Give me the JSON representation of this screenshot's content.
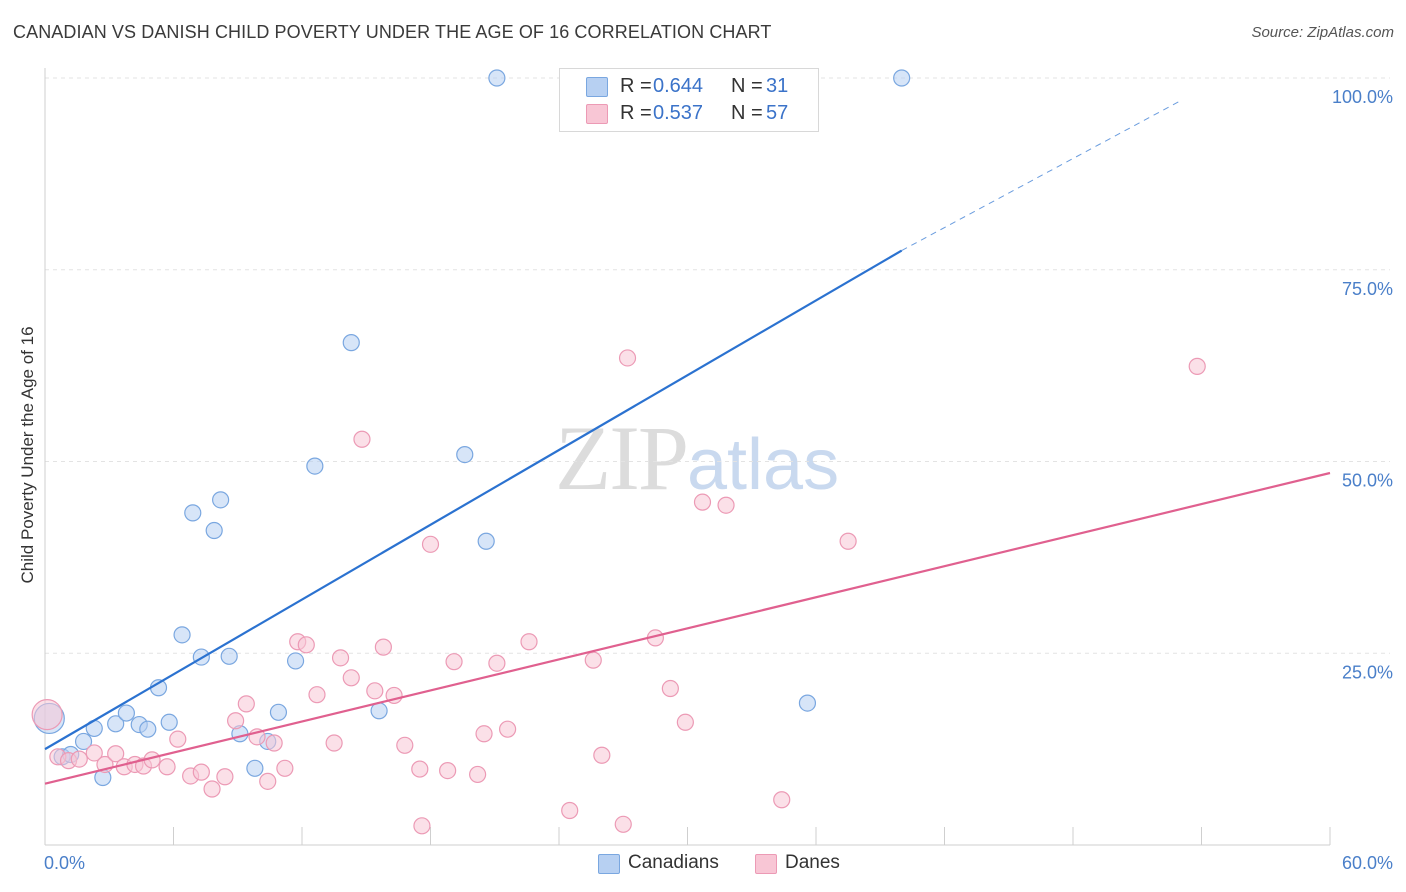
{
  "title": "CANADIAN VS DANISH CHILD POVERTY UNDER THE AGE OF 16 CORRELATION CHART",
  "source": "Source: ZipAtlas.com",
  "watermark": {
    "zip": "ZIP",
    "atlas": "atlas"
  },
  "colors": {
    "canadians_fill": "#b7d0f2",
    "canadians_stroke": "#7aa7e0",
    "canadians_line": "#2b72d0",
    "danes_fill": "#f8c6d5",
    "danes_stroke": "#ec9ab5",
    "danes_line": "#e0608f",
    "tick_label": "#4a7fc9",
    "grid": "#e3e3e3"
  },
  "legend": {
    "rows": [
      {
        "r_label": "R =",
        "r_value": "0.644",
        "n_label": "N =",
        "n_value": "31"
      },
      {
        "r_label": "R =",
        "r_value": "0.537",
        "n_label": "N =",
        "n_value": "57"
      }
    ],
    "bottom": [
      "Canadians",
      "Danes"
    ]
  },
  "chart_data": {
    "type": "scatter",
    "title": "CANADIAN VS DANISH CHILD POVERTY UNDER THE AGE OF 16 CORRELATION CHART",
    "xlabel": "",
    "ylabel": "Child Poverty Under the Age of 16",
    "xlim": [
      0,
      60
    ],
    "ylim": [
      0,
      100
    ],
    "x_tick_labels": [
      "0.0%",
      "60.0%"
    ],
    "y_ticks": [
      25,
      50,
      75,
      100
    ],
    "y_tick_labels": [
      "25.0%",
      "50.0%",
      "75.0%",
      "100.0%"
    ],
    "grid": true,
    "legend_position": "top-center",
    "series": [
      {
        "name": "Canadians",
        "r": 0.644,
        "n": 31,
        "trendline": {
          "x": [
            0,
            40
          ],
          "y": [
            12.5,
            77.5
          ],
          "dashed_to": {
            "x": 53,
            "y": 97
          }
        },
        "points": [
          [
            0.2,
            16.5
          ],
          [
            0.8,
            11.5
          ],
          [
            1.2,
            11.8
          ],
          [
            1.8,
            13.5
          ],
          [
            2.3,
            15.2
          ],
          [
            2.7,
            8.8
          ],
          [
            3.3,
            15.8
          ],
          [
            3.8,
            17.2
          ],
          [
            4.4,
            15.7
          ],
          [
            4.8,
            15.1
          ],
          [
            5.3,
            20.5
          ],
          [
            5.8,
            16.0
          ],
          [
            6.4,
            27.4
          ],
          [
            6.9,
            43.3
          ],
          [
            7.3,
            24.5
          ],
          [
            7.9,
            41.0
          ],
          [
            8.2,
            45.0
          ],
          [
            8.6,
            24.6
          ],
          [
            9.1,
            14.5
          ],
          [
            9.8,
            10.0
          ],
          [
            10.4,
            13.5
          ],
          [
            10.9,
            17.3
          ],
          [
            11.7,
            24.0
          ],
          [
            12.6,
            49.4
          ],
          [
            14.3,
            65.5
          ],
          [
            15.6,
            17.5
          ],
          [
            19.6,
            50.9
          ],
          [
            20.6,
            39.6
          ],
          [
            21.1,
            100.0
          ],
          [
            35.6,
            18.5
          ],
          [
            40.0,
            100.0
          ]
        ]
      },
      {
        "name": "Danes",
        "r": 0.537,
        "n": 57,
        "trendline": {
          "x": [
            0,
            60
          ],
          "y": [
            8.0,
            48.5
          ]
        },
        "points": [
          [
            0.1,
            17.0
          ],
          [
            0.6,
            11.5
          ],
          [
            1.1,
            11.0
          ],
          [
            1.6,
            11.2
          ],
          [
            2.3,
            12.0
          ],
          [
            2.8,
            10.5
          ],
          [
            3.3,
            11.9
          ],
          [
            3.7,
            10.2
          ],
          [
            4.2,
            10.5
          ],
          [
            4.6,
            10.3
          ],
          [
            5.0,
            11.1
          ],
          [
            5.7,
            10.2
          ],
          [
            6.2,
            13.8
          ],
          [
            6.8,
            9.0
          ],
          [
            7.3,
            9.5
          ],
          [
            7.8,
            7.3
          ],
          [
            8.4,
            8.9
          ],
          [
            8.9,
            16.2
          ],
          [
            9.4,
            18.4
          ],
          [
            9.9,
            14.1
          ],
          [
            10.4,
            8.3
          ],
          [
            10.7,
            13.3
          ],
          [
            11.2,
            10.0
          ],
          [
            11.8,
            26.5
          ],
          [
            12.2,
            26.1
          ],
          [
            12.7,
            19.6
          ],
          [
            13.5,
            13.3
          ],
          [
            13.8,
            24.4
          ],
          [
            14.3,
            21.8
          ],
          [
            14.8,
            52.9
          ],
          [
            15.4,
            20.1
          ],
          [
            15.8,
            25.8
          ],
          [
            16.3,
            19.5
          ],
          [
            16.8,
            13.0
          ],
          [
            17.5,
            9.9
          ],
          [
            18.0,
            39.2
          ],
          [
            18.8,
            9.7
          ],
          [
            19.1,
            23.9
          ],
          [
            20.2,
            9.2
          ],
          [
            20.5,
            14.5
          ],
          [
            21.1,
            23.7
          ],
          [
            21.6,
            15.1
          ],
          [
            22.6,
            26.5
          ],
          [
            24.5,
            4.5
          ],
          [
            25.6,
            24.1
          ],
          [
            26.0,
            11.7
          ],
          [
            27.0,
            2.7
          ],
          [
            27.2,
            63.5
          ],
          [
            28.5,
            27.0
          ],
          [
            29.2,
            20.4
          ],
          [
            29.9,
            16.0
          ],
          [
            30.7,
            44.7
          ],
          [
            31.8,
            44.3
          ],
          [
            34.4,
            5.9
          ],
          [
            37.5,
            39.6
          ],
          [
            53.8,
            62.4
          ],
          [
            17.6,
            2.5
          ]
        ]
      }
    ]
  }
}
